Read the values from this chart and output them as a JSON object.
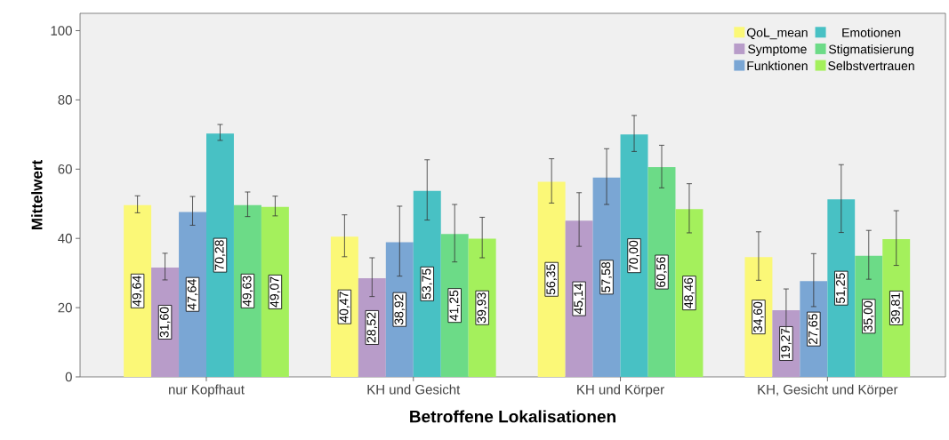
{
  "chart_data": {
    "type": "bar",
    "xlabel": "Betroffene Lokalisationen",
    "ylabel": "Mittelwert",
    "categories": [
      "nur Kopfhaut",
      "KH und Gesicht",
      "KH und Körper",
      "KH, Gesicht und Körper"
    ],
    "ylim": [
      0,
      105
    ],
    "yticks": [
      0,
      20,
      40,
      60,
      80,
      100
    ],
    "grid": false,
    "legend": "top right",
    "series": [
      {
        "name": "QoL_mean",
        "color": "#fbf877",
        "values": [
          49.64,
          40.47,
          56.35,
          34.6
        ],
        "value_labels": [
          "49,64",
          "40,47",
          "56,35",
          "34,60"
        ],
        "errors": [
          [
            47.4,
            52.3
          ],
          [
            34.7,
            46.8
          ],
          [
            50.2,
            63.0
          ],
          [
            27.9,
            41.9
          ]
        ]
      },
      {
        "name": "Symptome",
        "color": "#b89cc9",
        "values": [
          31.6,
          28.52,
          45.14,
          19.27
        ],
        "value_labels": [
          "31,60",
          "28,52",
          "45,14",
          "19,27"
        ],
        "errors": [
          [
            28.0,
            35.7
          ],
          [
            23.2,
            34.4
          ],
          [
            37.7,
            53.2
          ],
          [
            13.1,
            25.4
          ]
        ]
      },
      {
        "name": "Funktionen",
        "color": "#7aa6d4",
        "values": [
          47.64,
          38.92,
          57.58,
          27.65
        ],
        "value_labels": [
          "47,64",
          "38,92",
          "57,58",
          "27,65"
        ],
        "errors": [
          [
            43.8,
            52.1
          ],
          [
            29.1,
            49.3
          ],
          [
            49.8,
            65.9
          ],
          [
            20.3,
            35.6
          ]
        ]
      },
      {
        "name": "Emotionen",
        "color": "#48c1c4",
        "values": [
          70.28,
          53.75,
          70.0,
          51.25
        ],
        "value_labels": [
          "70,28",
          "53,75",
          "70,00",
          "51,25"
        ],
        "errors": [
          [
            68.3,
            72.9
          ],
          [
            45.3,
            62.7
          ],
          [
            65.1,
            75.5
          ],
          [
            41.7,
            61.3
          ]
        ]
      },
      {
        "name": "Stigmatisierung",
        "color": "#6cdb87",
        "values": [
          49.63,
          41.25,
          60.56,
          35.0
        ],
        "value_labels": [
          "49,63",
          "41,25",
          "60,56",
          "35,00"
        ],
        "errors": [
          [
            46.3,
            53.4
          ],
          [
            33.2,
            49.8
          ],
          [
            54.6,
            66.9
          ],
          [
            28.2,
            42.3
          ]
        ]
      },
      {
        "name": "Selbstvertrauen",
        "color": "#a4f05c",
        "values": [
          49.07,
          39.93,
          48.46,
          39.81
        ],
        "value_labels": [
          "49,07",
          "39,93",
          "48,46",
          "39,81"
        ],
        "errors": [
          [
            46.5,
            52.2
          ],
          [
            34.4,
            46.1
          ],
          [
            41.6,
            55.8
          ],
          [
            32.2,
            48.0
          ]
        ]
      }
    ]
  }
}
